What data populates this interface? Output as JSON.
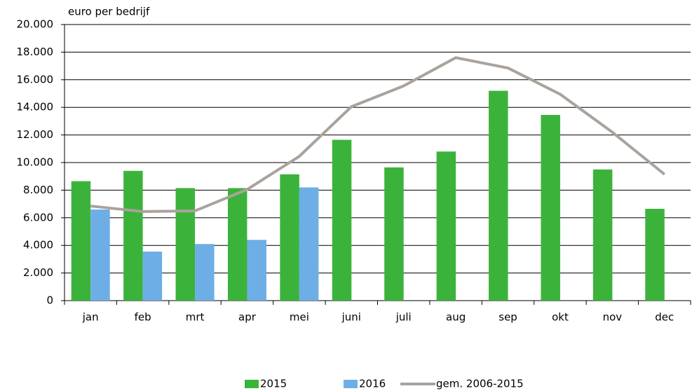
{
  "chart_data": {
    "type": "bar",
    "y_label": "euro per bedrijf",
    "categories": [
      "jan",
      "feb",
      "mrt",
      "apr",
      "mei",
      "juni",
      "juli",
      "aug",
      "sep",
      "okt",
      "nov",
      "dec"
    ],
    "series": [
      {
        "name": "2015",
        "color": "#3bb33b",
        "values": [
          8650,
          9400,
          8150,
          8150,
          9150,
          11650,
          9650,
          10800,
          15200,
          13450,
          9500,
          6650
        ]
      },
      {
        "name": "2016",
        "color": "#6eaee6",
        "values": [
          6600,
          3550,
          4100,
          4400,
          8200,
          null,
          null,
          null,
          null,
          null,
          null,
          null
        ]
      },
      {
        "name": "gem. 2006-2015",
        "type": "line",
        "color": "#aaa29c",
        "values": [
          6850,
          6450,
          6500,
          8050,
          10450,
          14050,
          15550,
          17600,
          16850,
          14950,
          12200,
          9150
        ]
      }
    ],
    "ylim": [
      0,
      20000
    ],
    "yticks": [
      0,
      {
        "value": 2000,
        "label": "2.000"
      },
      {
        "value": 4000,
        "label": "4.000"
      },
      {
        "value": 6000,
        "label": "6.000"
      },
      {
        "value": 8000,
        "label": "8.000"
      },
      {
        "value": 10000,
        "label": "10.000"
      },
      {
        "value": 12000,
        "label": "12.000"
      },
      {
        "value": 14000,
        "label": "14.000"
      },
      {
        "value": 16000,
        "label": "16.000"
      },
      {
        "value": 18000,
        "label": "18.000"
      },
      {
        "value": 20000,
        "label": "20.000"
      }
    ],
    "grid": true,
    "legend": "bottom"
  }
}
